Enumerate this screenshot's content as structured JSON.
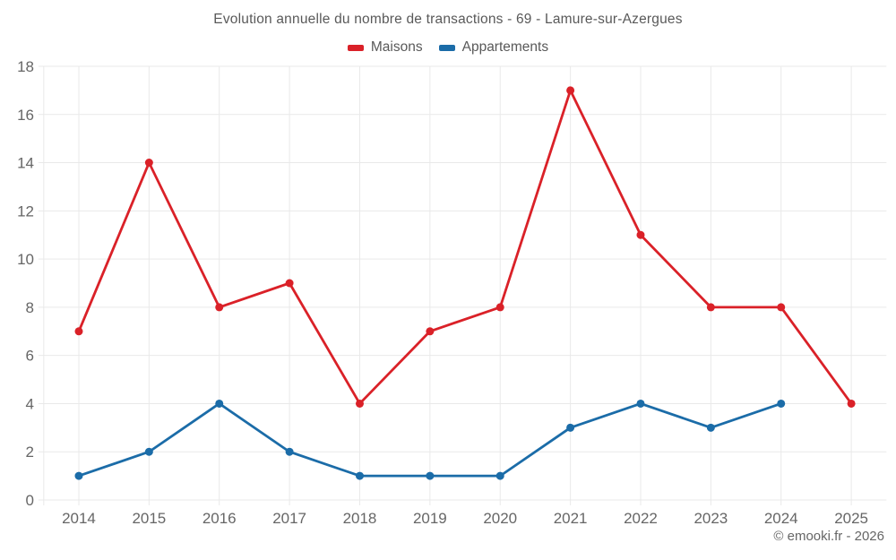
{
  "footer": {
    "credit": "© emooki.fr - 2026"
  },
  "chart_data": {
    "type": "line",
    "title": "Evolution annuelle du nombre de transactions - 69 - Lamure-sur-Azergues",
    "categories": [
      "2014",
      "2015",
      "2016",
      "2017",
      "2018",
      "2019",
      "2020",
      "2021",
      "2022",
      "2023",
      "2024",
      "2025"
    ],
    "series": [
      {
        "name": "Maisons",
        "color": "#da2128",
        "values": [
          7,
          14,
          8,
          9,
          4,
          7,
          8,
          17,
          11,
          8,
          8,
          4
        ]
      },
      {
        "name": "Appartements",
        "color": "#1b6ca8",
        "values": [
          1,
          2,
          4,
          2,
          1,
          1,
          1,
          3,
          4,
          3,
          4,
          null
        ]
      }
    ],
    "ylabel": "",
    "xlabel": "",
    "ylim": [
      0,
      18
    ],
    "y_tick_step": 2,
    "y_tick_labels": [
      "0",
      "2",
      "4",
      "6",
      "8",
      "10",
      "12",
      "14",
      "16",
      "18"
    ],
    "grid": true,
    "grid_color": "#e9e9e9",
    "text_color": "#666666",
    "legend_position": "top"
  }
}
